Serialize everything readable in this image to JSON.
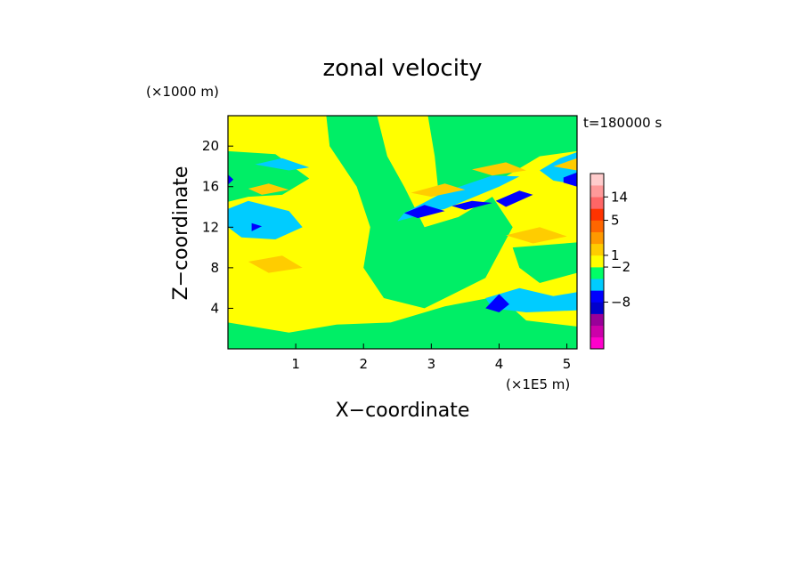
{
  "chart_data": {
    "type": "heatmap",
    "title": "zonal velocity",
    "xlabel": "X−coordinate",
    "ylabel": "Z−coordinate",
    "x_unit": "(×1E5 m)",
    "y_unit": "(×1000 m)",
    "time_label": "t=180000 s",
    "xlim": [
      0,
      5.15
    ],
    "ylim": [
      0,
      23
    ],
    "x_ticks": [
      "1",
      "2",
      "3",
      "4",
      "5"
    ],
    "x_tick_values": [
      1,
      2,
      3,
      4,
      5
    ],
    "y_ticks": [
      "4",
      "8",
      "12",
      "16",
      "20"
    ],
    "y_tick_values": [
      4,
      8,
      12,
      16,
      20
    ],
    "background_level_color": "#ffff00",
    "colorbar": {
      "labels": [
        "14",
        "5",
        "1",
        "−2",
        "−8"
      ],
      "colors": [
        "#ff00cc",
        "#cc00aa",
        "#990099",
        "#0000cc",
        "#0000ff",
        "#00ccff",
        "#00ff66",
        "#ffff00",
        "#ffcc00",
        "#ff9900",
        "#ff6600",
        "#ff3300",
        "#ff6666",
        "#ff9999",
        "#ffcccc"
      ]
    },
    "regions": [
      {
        "level": "#00ee66",
        "points": [
          [
            0,
            23
          ],
          [
            1.45,
            23
          ],
          [
            1.5,
            20
          ],
          [
            1.9,
            16
          ],
          [
            2.1,
            12
          ],
          [
            2.0,
            8
          ],
          [
            2.3,
            5
          ],
          [
            2.9,
            4
          ],
          [
            3.8,
            7
          ],
          [
            4.2,
            12
          ],
          [
            3.9,
            15
          ],
          [
            3.4,
            13
          ],
          [
            2.9,
            12
          ],
          [
            2.6,
            16
          ],
          [
            2.35,
            19
          ],
          [
            2.2,
            23
          ]
        ]
      },
      {
        "level": "#00ee66",
        "points": [
          [
            2.95,
            23
          ],
          [
            5.15,
            23
          ],
          [
            5.15,
            19.5
          ],
          [
            4.6,
            19
          ],
          [
            4.1,
            17
          ],
          [
            3.6,
            15.5
          ],
          [
            3.1,
            15.8
          ],
          [
            3.05,
            19
          ]
        ]
      },
      {
        "level": "#00ee66",
        "points": [
          [
            0,
            19.5
          ],
          [
            0.7,
            19.2
          ],
          [
            1.2,
            16.8
          ],
          [
            0.8,
            15.2
          ],
          [
            0.3,
            15.0
          ],
          [
            0,
            14.5
          ]
        ]
      },
      {
        "level": "#00ee66",
        "points": [
          [
            0,
            0
          ],
          [
            5.15,
            0
          ],
          [
            5.15,
            2.2
          ],
          [
            4.4,
            2.8
          ],
          [
            4.0,
            5.2
          ],
          [
            3.2,
            4.2
          ],
          [
            2.4,
            2.6
          ],
          [
            1.6,
            2.4
          ],
          [
            0.9,
            1.6
          ],
          [
            0,
            2.6
          ]
        ]
      },
      {
        "level": "#00ee66",
        "points": [
          [
            4.2,
            10
          ],
          [
            5.15,
            10.5
          ],
          [
            5.15,
            7.5
          ],
          [
            4.6,
            6.5
          ],
          [
            4.3,
            8
          ]
        ]
      },
      {
        "level": "#00ccff",
        "points": [
          [
            0,
            13.8
          ],
          [
            0.3,
            14.6
          ],
          [
            0.9,
            13.6
          ],
          [
            1.1,
            12.0
          ],
          [
            0.7,
            10.8
          ],
          [
            0.2,
            11.0
          ],
          [
            0,
            12
          ]
        ]
      },
      {
        "level": "#00ccff",
        "points": [
          [
            0.4,
            18.2
          ],
          [
            0.9,
            17.6
          ],
          [
            1.2,
            17.9
          ],
          [
            0.8,
            18.8
          ]
        ]
      },
      {
        "level": "#00ccff",
        "points": [
          [
            2.5,
            12.6
          ],
          [
            3.2,
            13.8
          ],
          [
            4.0,
            16.0
          ],
          [
            4.3,
            17.0
          ],
          [
            3.9,
            17.1
          ],
          [
            3.2,
            15.5
          ],
          [
            2.6,
            13.4
          ]
        ]
      },
      {
        "level": "#00ccff",
        "points": [
          [
            3.8,
            5.0
          ],
          [
            4.3,
            6.0
          ],
          [
            4.8,
            5.2
          ],
          [
            5.15,
            5.6
          ],
          [
            5.15,
            3.8
          ],
          [
            4.4,
            3.6
          ],
          [
            3.9,
            4.0
          ]
        ]
      },
      {
        "level": "#00ccff",
        "points": [
          [
            4.9,
            18.8
          ],
          [
            5.15,
            19.4
          ],
          [
            5.15,
            16.2
          ],
          [
            4.8,
            16.6
          ],
          [
            4.6,
            17.6
          ]
        ]
      },
      {
        "level": "#0000ff",
        "points": [
          [
            2.6,
            13.4
          ],
          [
            2.9,
            14.2
          ],
          [
            3.2,
            13.6
          ],
          [
            2.8,
            12.9
          ]
        ]
      },
      {
        "level": "#0000ff",
        "points": [
          [
            3.3,
            14.1
          ],
          [
            3.6,
            14.6
          ],
          [
            3.9,
            14.4
          ],
          [
            3.5,
            13.7
          ]
        ]
      },
      {
        "level": "#0000ff",
        "points": [
          [
            3.95,
            14.6
          ],
          [
            4.3,
            15.6
          ],
          [
            4.5,
            15.2
          ],
          [
            4.1,
            14.0
          ]
        ]
      },
      {
        "level": "#0000ff",
        "points": [
          [
            3.8,
            4.0
          ],
          [
            4.0,
            5.4
          ],
          [
            4.15,
            4.4
          ],
          [
            4.0,
            3.6
          ]
        ]
      },
      {
        "level": "#0000ff",
        "points": [
          [
            4.95,
            16.9
          ],
          [
            5.15,
            17.4
          ],
          [
            5.15,
            16.0
          ],
          [
            4.95,
            16.4
          ]
        ]
      },
      {
        "level": "#0000ff",
        "points": [
          [
            0,
            17.2
          ],
          [
            0.08,
            16.7
          ],
          [
            0,
            16.2
          ]
        ]
      },
      {
        "level": "#0000ff",
        "points": [
          [
            0.35,
            12.4
          ],
          [
            0.5,
            12.1
          ],
          [
            0.35,
            11.6
          ]
        ]
      },
      {
        "level": "#ffcc00",
        "points": [
          [
            0.3,
            15.8
          ],
          [
            0.6,
            16.3
          ],
          [
            0.9,
            15.7
          ],
          [
            0.5,
            15.2
          ]
        ]
      },
      {
        "level": "#ffcc00",
        "points": [
          [
            0.3,
            8.6
          ],
          [
            0.8,
            9.2
          ],
          [
            1.1,
            8.0
          ],
          [
            0.6,
            7.5
          ]
        ]
      },
      {
        "level": "#ffcc00",
        "points": [
          [
            4.1,
            11.2
          ],
          [
            4.6,
            12.0
          ],
          [
            5.0,
            11.1
          ],
          [
            4.5,
            10.4
          ]
        ]
      },
      {
        "level": "#ffcc00",
        "points": [
          [
            3.6,
            17.7
          ],
          [
            4.1,
            18.4
          ],
          [
            4.4,
            17.6
          ],
          [
            3.9,
            17.1
          ]
        ]
      },
      {
        "level": "#ffcc00",
        "points": [
          [
            4.8,
            18.0
          ],
          [
            5.15,
            18.8
          ],
          [
            5.15,
            17.6
          ]
        ]
      },
      {
        "level": "#ffcc00",
        "points": [
          [
            2.7,
            15.4
          ],
          [
            3.2,
            16.3
          ],
          [
            3.5,
            15.7
          ],
          [
            3.0,
            15.0
          ]
        ]
      }
    ]
  }
}
